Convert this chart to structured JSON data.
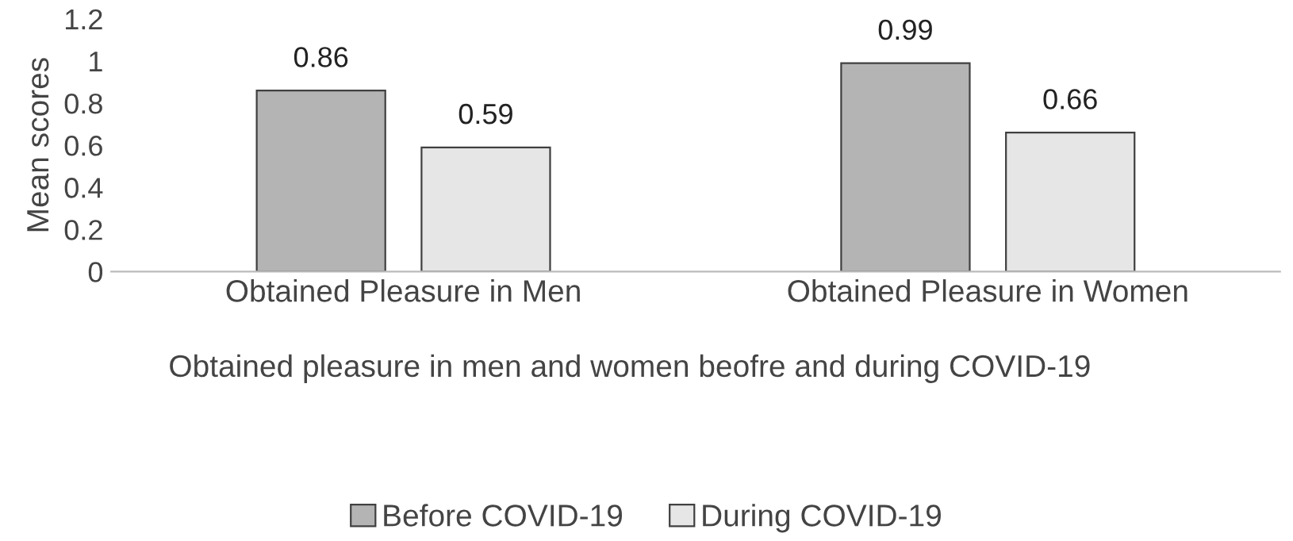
{
  "chart_data": {
    "type": "bar",
    "categories": [
      "Obtained Pleasure in Men",
      "Obtained Pleasure in Women"
    ],
    "series": [
      {
        "name": "Before COVID-19",
        "color": "#b4b4b4",
        "values": [
          0.86,
          0.99
        ]
      },
      {
        "name": "During COVID-19",
        "color": "#e6e6e6",
        "values": [
          0.59,
          0.66
        ]
      }
    ],
    "xlabel": "Obtained pleasure in men and women beofre and during COVID-19",
    "ylabel": "Mean scores",
    "ylim": [
      0,
      1.2
    ],
    "yticks": [
      0,
      0.2,
      0.4,
      0.6,
      0.8,
      1,
      1.2
    ],
    "data_labels": true,
    "grid": false,
    "legend": "bottom"
  }
}
